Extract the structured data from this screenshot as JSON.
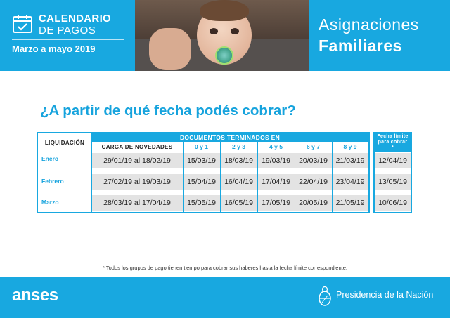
{
  "header": {
    "title_line1": "CALENDARIO",
    "title_line2": "DE PAGOS",
    "subtitle": "Marzo a mayo 2019",
    "brand_line1": "Asignaciones",
    "brand_line2": "Familiares",
    "calendar_icon": "calendar-check-icon"
  },
  "question": "¿A partir de qué fecha podés cobrar?",
  "table": {
    "col_liquidacion": "LIQUIDACIÓN",
    "col_documentos": "DOCUMENTOS TERMINADOS EN",
    "col_carga": "CARGA DE NOVEDADES",
    "digit_headers": [
      "0 y 1",
      "2 y 3",
      "4 y 5",
      "6 y 7",
      "8 y 9"
    ],
    "col_fecha_limite": "Fecha límite para cobrar *",
    "rows": [
      {
        "label": "Enero",
        "carga": "29/01/19 al 18/02/19",
        "dates": [
          "15/03/19",
          "18/03/19",
          "19/03/19",
          "20/03/19",
          "21/03/19"
        ],
        "limite": "12/04/19"
      },
      {
        "label": "Febrero",
        "carga": "27/02/19 al 19/03/19",
        "dates": [
          "15/04/19",
          "16/04/19",
          "17/04/19",
          "22/04/19",
          "23/04/19"
        ],
        "limite": "13/05/19"
      },
      {
        "label": "Marzo",
        "carga": "28/03/19 al 17/04/19",
        "dates": [
          "15/05/19",
          "16/05/19",
          "17/05/19",
          "20/05/19",
          "21/05/19"
        ],
        "limite": "10/06/19"
      }
    ]
  },
  "footnote": "* Todos los grupos de pago tienen tiempo para cobrar sus haberes hasta la fecha límite correspondiente.",
  "footer": {
    "logo": "anses",
    "presidencia": "Presidencia de la Nación",
    "escudo_icon": "coat-of-arms-icon"
  },
  "colors": {
    "brand_blue": "#18a8e0",
    "row_gray": "#e3e3e3"
  }
}
